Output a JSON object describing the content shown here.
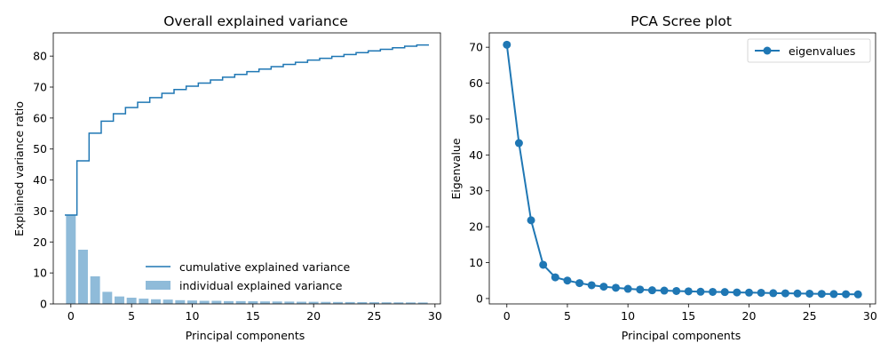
{
  "chart_data": [
    {
      "type": "bar",
      "title": "Overall explained variance",
      "xlabel": "Principal components",
      "ylabel": "Explained variance ratio",
      "xlim": [
        -1.45,
        30.45
      ],
      "ylim": [
        0,
        87.5
      ],
      "xticks": [
        0,
        5,
        10,
        15,
        20,
        25,
        30
      ],
      "yticks": [
        0,
        10,
        20,
        30,
        40,
        50,
        60,
        70,
        80
      ],
      "x": [
        0,
        1,
        2,
        3,
        4,
        5,
        6,
        7,
        8,
        9,
        10,
        11,
        12,
        13,
        14,
        15,
        16,
        17,
        18,
        19,
        20,
        21,
        22,
        23,
        24,
        25,
        26,
        27,
        28,
        29
      ],
      "series": [
        {
          "name": "individual explained variance",
          "kind": "bar",
          "color": "#8fbbd9",
          "values": [
            28.7,
            17.5,
            8.9,
            3.9,
            2.4,
            2.0,
            1.7,
            1.5,
            1.4,
            1.2,
            1.1,
            1.0,
            1.0,
            0.9,
            0.9,
            0.85,
            0.8,
            0.78,
            0.75,
            0.7,
            0.68,
            0.65,
            0.62,
            0.6,
            0.58,
            0.55,
            0.53,
            0.51,
            0.49,
            0.47
          ]
        },
        {
          "name": "cumulative explained variance",
          "kind": "step",
          "color": "#1f77b4",
          "values": [
            28.7,
            46.2,
            55.1,
            59.0,
            61.4,
            63.4,
            65.1,
            66.6,
            68.0,
            69.2,
            70.3,
            71.3,
            72.3,
            73.2,
            74.1,
            75.0,
            75.8,
            76.6,
            77.3,
            78.0,
            78.7,
            79.3,
            79.9,
            80.5,
            81.1,
            81.7,
            82.2,
            82.7,
            83.2,
            83.6
          ]
        }
      ],
      "legend_position": "lower-right",
      "grid": false
    },
    {
      "type": "line",
      "title": "PCA Scree plot",
      "xlabel": "Principal components",
      "ylabel": "Eigenvalue",
      "xlim": [
        -1.45,
        30.45
      ],
      "ylim": [
        -1.5,
        74.0
      ],
      "xticks": [
        0,
        5,
        10,
        15,
        20,
        25,
        30
      ],
      "yticks": [
        0,
        10,
        20,
        30,
        40,
        50,
        60,
        70
      ],
      "x": [
        0,
        1,
        2,
        3,
        4,
        5,
        6,
        7,
        8,
        9,
        10,
        11,
        12,
        13,
        14,
        15,
        16,
        17,
        18,
        19,
        20,
        21,
        22,
        23,
        24,
        25,
        26,
        27,
        28,
        29
      ],
      "series": [
        {
          "name": "eigenvalues",
          "color": "#1f77b4",
          "marker": "circle",
          "values": [
            70.7,
            43.3,
            21.8,
            9.4,
            5.9,
            5.0,
            4.3,
            3.7,
            3.3,
            3.0,
            2.7,
            2.5,
            2.3,
            2.2,
            2.1,
            2.0,
            1.9,
            1.85,
            1.8,
            1.7,
            1.65,
            1.6,
            1.5,
            1.45,
            1.4,
            1.35,
            1.3,
            1.25,
            1.2,
            1.15
          ]
        }
      ],
      "legend_position": "upper-right",
      "grid": false
    }
  ]
}
